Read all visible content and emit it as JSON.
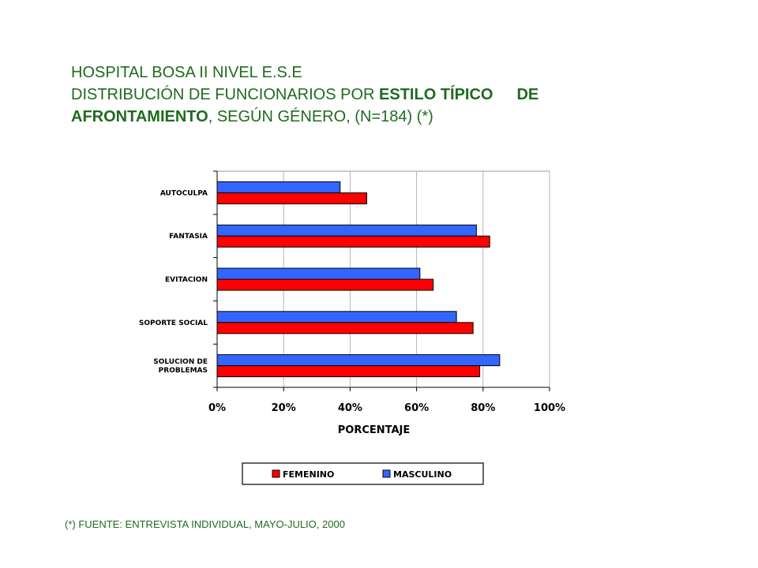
{
  "title": {
    "line1": "HOSPITAL BOSA II NIVEL E.S.E",
    "line2_prefix": "DISTRIBUCIÓN DE FUNCIONARIOS POR ",
    "line2_bold": "ESTILO TÍPICO",
    "line2_bold_suffix": "DE",
    "line3_bold": "AFRONTAMIENTO",
    "line3_suffix": ", SEGÚN GÉNERO, (N=184) (*)"
  },
  "footnote": "(*) FUENTE: ENTREVISTA INDIVIDUAL, MAYO-JULIO, 2000",
  "chart_data": {
    "type": "bar",
    "orientation": "horizontal",
    "categories": [
      "AUTOCULPA",
      "FANTASIA",
      "EVITACION",
      "SOPORTE SOCIAL",
      "SOLUCION DE PROBLEMAS"
    ],
    "series": [
      {
        "name": "MASCULINO",
        "color": "#3366ff",
        "values": [
          37,
          78,
          61,
          72,
          85
        ]
      },
      {
        "name": "FEMENINO",
        "color": "#ff0000",
        "values": [
          45,
          82,
          65,
          77,
          79
        ]
      }
    ],
    "xlabel": "PORCENTAJE",
    "ylabel": "",
    "xlim": [
      0,
      100
    ],
    "xticks": [
      "0%",
      "20%",
      "40%",
      "60%",
      "80%",
      "100%"
    ],
    "grid": true,
    "legend": {
      "position": "bottom",
      "entries": [
        "FEMENINO",
        "MASCULINO"
      ]
    }
  }
}
